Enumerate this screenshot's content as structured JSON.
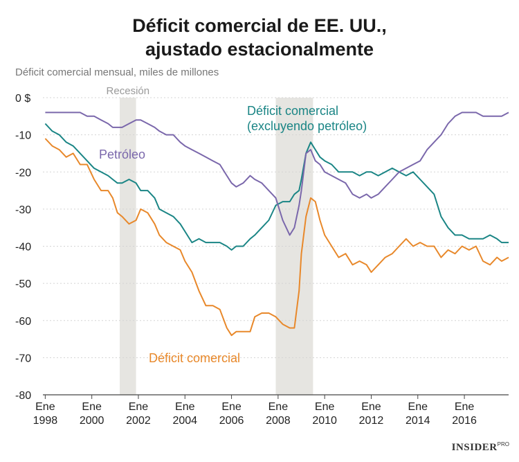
{
  "title_line1": "Déficit comercial de EE. UU.,",
  "title_line2": "ajustado estacionalmente",
  "brand": {
    "name": "INSIDER",
    "suffix": "PRO"
  },
  "chart_data": {
    "type": "line",
    "ylabel": "Déficit comercial mensual, miles de millones",
    "ylim": [
      -80,
      0
    ],
    "yticks": [
      0,
      -10,
      -20,
      -30,
      -40,
      -50,
      -60,
      -70,
      -80
    ],
    "ytick_labels": [
      "0 $",
      "-10",
      "-20",
      "-30",
      "-40",
      "-50",
      "-60",
      "-70",
      "-80"
    ],
    "xlim": [
      1997.9,
      2017.9
    ],
    "xticks": [
      1998,
      2000,
      2002,
      2004,
      2006,
      2008,
      2010,
      2012,
      2014,
      2016
    ],
    "xtick_labels": [
      {
        "line1": "Ene",
        "line2": "1998"
      },
      {
        "line1": "Ene",
        "line2": "2000"
      },
      {
        "line1": "Ene",
        "line2": "2002"
      },
      {
        "line1": "Ene",
        "line2": "2004"
      },
      {
        "line1": "Ene",
        "line2": "2006"
      },
      {
        "line1": "Ene",
        "line2": "2008"
      },
      {
        "line1": "Ene",
        "line2": "2010"
      },
      {
        "line1": "Ene",
        "line2": "2012"
      },
      {
        "line1": "Ene",
        "line2": "2014"
      },
      {
        "line1": "Ene",
        "line2": "2016"
      }
    ],
    "recession_label": "Recesión",
    "recessions": [
      [
        2001.2,
        2001.9
      ],
      [
        2007.9,
        2009.5
      ]
    ],
    "series": [
      {
        "name": "Déficit comercial",
        "color": "#e8882a",
        "points": [
          [
            1998.0,
            -11
          ],
          [
            1998.3,
            -13
          ],
          [
            1998.6,
            -14
          ],
          [
            1998.9,
            -16
          ],
          [
            1999.2,
            -15
          ],
          [
            1999.5,
            -18
          ],
          [
            1999.8,
            -18
          ],
          [
            2000.1,
            -22
          ],
          [
            2000.4,
            -25
          ],
          [
            2000.7,
            -25
          ],
          [
            2000.9,
            -27
          ],
          [
            2001.1,
            -31
          ],
          [
            2001.3,
            -32
          ],
          [
            2001.6,
            -34
          ],
          [
            2001.9,
            -33
          ],
          [
            2002.1,
            -30
          ],
          [
            2002.4,
            -31
          ],
          [
            2002.7,
            -34
          ],
          [
            2002.9,
            -37
          ],
          [
            2003.2,
            -39
          ],
          [
            2003.5,
            -40
          ],
          [
            2003.8,
            -41
          ],
          [
            2004.0,
            -44
          ],
          [
            2004.3,
            -47
          ],
          [
            2004.6,
            -52
          ],
          [
            2004.9,
            -56
          ],
          [
            2005.2,
            -56
          ],
          [
            2005.5,
            -57
          ],
          [
            2005.8,
            -62
          ],
          [
            2006.0,
            -64
          ],
          [
            2006.2,
            -63
          ],
          [
            2006.5,
            -63
          ],
          [
            2006.8,
            -63
          ],
          [
            2007.0,
            -59
          ],
          [
            2007.3,
            -58
          ],
          [
            2007.6,
            -58
          ],
          [
            2007.9,
            -59
          ],
          [
            2008.2,
            -61
          ],
          [
            2008.5,
            -62
          ],
          [
            2008.7,
            -62
          ],
          [
            2008.9,
            -52
          ],
          [
            2009.0,
            -42
          ],
          [
            2009.2,
            -32
          ],
          [
            2009.4,
            -27
          ],
          [
            2009.6,
            -28
          ],
          [
            2009.8,
            -33
          ],
          [
            2010.0,
            -37
          ],
          [
            2010.3,
            -40
          ],
          [
            2010.6,
            -43
          ],
          [
            2010.9,
            -42
          ],
          [
            2011.2,
            -45
          ],
          [
            2011.5,
            -44
          ],
          [
            2011.8,
            -45
          ],
          [
            2012.0,
            -47
          ],
          [
            2012.3,
            -45
          ],
          [
            2012.6,
            -43
          ],
          [
            2012.9,
            -42
          ],
          [
            2013.2,
            -40
          ],
          [
            2013.5,
            -38
          ],
          [
            2013.8,
            -40
          ],
          [
            2014.1,
            -39
          ],
          [
            2014.4,
            -40
          ],
          [
            2014.7,
            -40
          ],
          [
            2015.0,
            -43
          ],
          [
            2015.3,
            -41
          ],
          [
            2015.6,
            -42
          ],
          [
            2015.9,
            -40
          ],
          [
            2016.2,
            -41
          ],
          [
            2016.5,
            -40
          ],
          [
            2016.8,
            -44
          ],
          [
            2017.1,
            -45
          ],
          [
            2017.4,
            -43
          ],
          [
            2017.6,
            -44
          ],
          [
            2017.9,
            -43
          ]
        ]
      },
      {
        "name": "Déficit comercial (excluyendo petróleo)",
        "color": "#1a8585",
        "points": [
          [
            1998.0,
            -7
          ],
          [
            1998.3,
            -9
          ],
          [
            1998.6,
            -10
          ],
          [
            1998.9,
            -12
          ],
          [
            1999.2,
            -13
          ],
          [
            1999.5,
            -15
          ],
          [
            1999.8,
            -17
          ],
          [
            2000.1,
            -19
          ],
          [
            2000.4,
            -20
          ],
          [
            2000.7,
            -21
          ],
          [
            2000.9,
            -22
          ],
          [
            2001.1,
            -23
          ],
          [
            2001.3,
            -23
          ],
          [
            2001.6,
            -22
          ],
          [
            2001.9,
            -23
          ],
          [
            2002.1,
            -25
          ],
          [
            2002.4,
            -25
          ],
          [
            2002.7,
            -27
          ],
          [
            2002.9,
            -30
          ],
          [
            2003.2,
            -31
          ],
          [
            2003.5,
            -32
          ],
          [
            2003.8,
            -34
          ],
          [
            2004.0,
            -36
          ],
          [
            2004.3,
            -39
          ],
          [
            2004.6,
            -38
          ],
          [
            2004.9,
            -39
          ],
          [
            2005.2,
            -39
          ],
          [
            2005.5,
            -39
          ],
          [
            2005.8,
            -40
          ],
          [
            2006.0,
            -41
          ],
          [
            2006.2,
            -40
          ],
          [
            2006.5,
            -40
          ],
          [
            2006.8,
            -38
          ],
          [
            2007.0,
            -37
          ],
          [
            2007.3,
            -35
          ],
          [
            2007.6,
            -33
          ],
          [
            2007.9,
            -29
          ],
          [
            2008.2,
            -28
          ],
          [
            2008.5,
            -28
          ],
          [
            2008.7,
            -26
          ],
          [
            2008.9,
            -25
          ],
          [
            2009.0,
            -22
          ],
          [
            2009.2,
            -15
          ],
          [
            2009.4,
            -12
          ],
          [
            2009.6,
            -14
          ],
          [
            2009.8,
            -16
          ],
          [
            2010.0,
            -17
          ],
          [
            2010.3,
            -18
          ],
          [
            2010.6,
            -20
          ],
          [
            2010.9,
            -20
          ],
          [
            2011.2,
            -20
          ],
          [
            2011.5,
            -21
          ],
          [
            2011.8,
            -20
          ],
          [
            2012.0,
            -20
          ],
          [
            2012.3,
            -21
          ],
          [
            2012.6,
            -20
          ],
          [
            2012.9,
            -19
          ],
          [
            2013.2,
            -20
          ],
          [
            2013.5,
            -21
          ],
          [
            2013.8,
            -20
          ],
          [
            2014.1,
            -22
          ],
          [
            2014.4,
            -24
          ],
          [
            2014.7,
            -26
          ],
          [
            2015.0,
            -32
          ],
          [
            2015.3,
            -35
          ],
          [
            2015.6,
            -37
          ],
          [
            2015.9,
            -37
          ],
          [
            2016.2,
            -38
          ],
          [
            2016.5,
            -38
          ],
          [
            2016.8,
            -38
          ],
          [
            2017.1,
            -37
          ],
          [
            2017.4,
            -38
          ],
          [
            2017.6,
            -39
          ],
          [
            2017.9,
            -39
          ]
        ]
      },
      {
        "name": "Petróleo",
        "color": "#7a67ab",
        "points": [
          [
            1998.0,
            -4
          ],
          [
            1998.3,
            -4
          ],
          [
            1998.6,
            -4
          ],
          [
            1998.9,
            -4
          ],
          [
            1999.2,
            -4
          ],
          [
            1999.5,
            -4
          ],
          [
            1999.8,
            -5
          ],
          [
            2000.1,
            -5
          ],
          [
            2000.4,
            -6
          ],
          [
            2000.7,
            -7
          ],
          [
            2000.9,
            -8
          ],
          [
            2001.1,
            -8
          ],
          [
            2001.3,
            -8
          ],
          [
            2001.6,
            -7
          ],
          [
            2001.9,
            -6
          ],
          [
            2002.1,
            -6
          ],
          [
            2002.4,
            -7
          ],
          [
            2002.7,
            -8
          ],
          [
            2002.9,
            -9
          ],
          [
            2003.2,
            -10
          ],
          [
            2003.5,
            -10
          ],
          [
            2003.8,
            -12
          ],
          [
            2004.0,
            -13
          ],
          [
            2004.3,
            -14
          ],
          [
            2004.6,
            -15
          ],
          [
            2004.9,
            -16
          ],
          [
            2005.2,
            -17
          ],
          [
            2005.5,
            -18
          ],
          [
            2005.8,
            -21
          ],
          [
            2006.0,
            -23
          ],
          [
            2006.2,
            -24
          ],
          [
            2006.5,
            -23
          ],
          [
            2006.8,
            -21
          ],
          [
            2007.0,
            -22
          ],
          [
            2007.3,
            -23
          ],
          [
            2007.6,
            -25
          ],
          [
            2007.9,
            -27
          ],
          [
            2008.2,
            -33
          ],
          [
            2008.5,
            -37
          ],
          [
            2008.7,
            -35
          ],
          [
            2008.9,
            -29
          ],
          [
            2009.0,
            -25
          ],
          [
            2009.2,
            -15
          ],
          [
            2009.4,
            -14
          ],
          [
            2009.6,
            -17
          ],
          [
            2009.8,
            -18
          ],
          [
            2010.0,
            -20
          ],
          [
            2010.3,
            -21
          ],
          [
            2010.6,
            -22
          ],
          [
            2010.9,
            -23
          ],
          [
            2011.2,
            -26
          ],
          [
            2011.5,
            -27
          ],
          [
            2011.8,
            -26
          ],
          [
            2012.0,
            -27
          ],
          [
            2012.3,
            -26
          ],
          [
            2012.6,
            -24
          ],
          [
            2012.9,
            -22
          ],
          [
            2013.2,
            -20
          ],
          [
            2013.5,
            -19
          ],
          [
            2013.8,
            -18
          ],
          [
            2014.1,
            -17
          ],
          [
            2014.4,
            -14
          ],
          [
            2014.7,
            -12
          ],
          [
            2015.0,
            -10
          ],
          [
            2015.3,
            -7
          ],
          [
            2015.6,
            -5
          ],
          [
            2015.9,
            -4
          ],
          [
            2016.2,
            -4
          ],
          [
            2016.5,
            -4
          ],
          [
            2016.8,
            -5
          ],
          [
            2017.1,
            -5
          ],
          [
            2017.4,
            -5
          ],
          [
            2017.6,
            -5
          ],
          [
            2017.9,
            -4
          ]
        ]
      }
    ],
    "annotations": [
      {
        "series": "Petróleo",
        "lines": [
          "Petróleo"
        ]
      },
      {
        "series": "Déficit comercial (excluyendo petróleo)",
        "lines": [
          "Déficit comercial",
          "(excluyendo petróleo)"
        ]
      },
      {
        "series": "Déficit comercial",
        "lines": [
          "Déficit comercial"
        ]
      }
    ]
  }
}
